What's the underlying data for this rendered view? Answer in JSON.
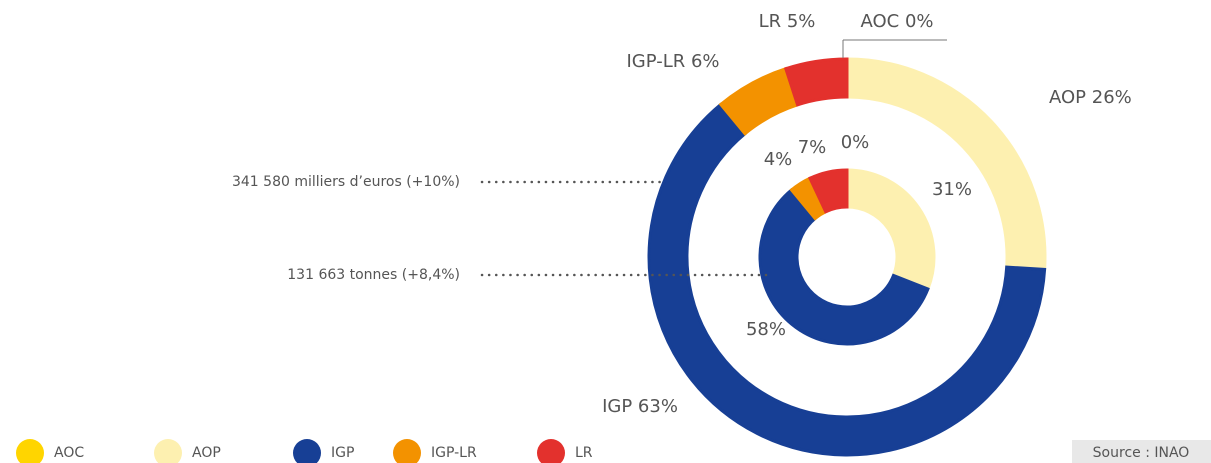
{
  "chart_data": {
    "type": "donut",
    "categories": [
      "AOC",
      "AOP",
      "IGP",
      "IGP-LR",
      "LR"
    ],
    "colors": [
      "#ffd500",
      "#fdf0b0",
      "#173f95",
      "#f39200",
      "#e3312d"
    ],
    "series": [
      {
        "values": [
          0,
          26,
          63,
          6,
          5
        ],
        "value_labels": [
          "AOC 0%",
          "AOP 26%",
          "IGP 63%",
          "IGP-LR 6%",
          "LR 5%"
        ],
        "annotation": "341 580 milliers d’euros (+10%)"
      },
      {
        "values": [
          0,
          31,
          58,
          4,
          7
        ],
        "value_labels": [
          "0%",
          "31%",
          "58%",
          "4%",
          "7%"
        ],
        "annotation": "131 663 tonnes (+8,4%)"
      }
    ],
    "source": "Source : INAO"
  }
}
